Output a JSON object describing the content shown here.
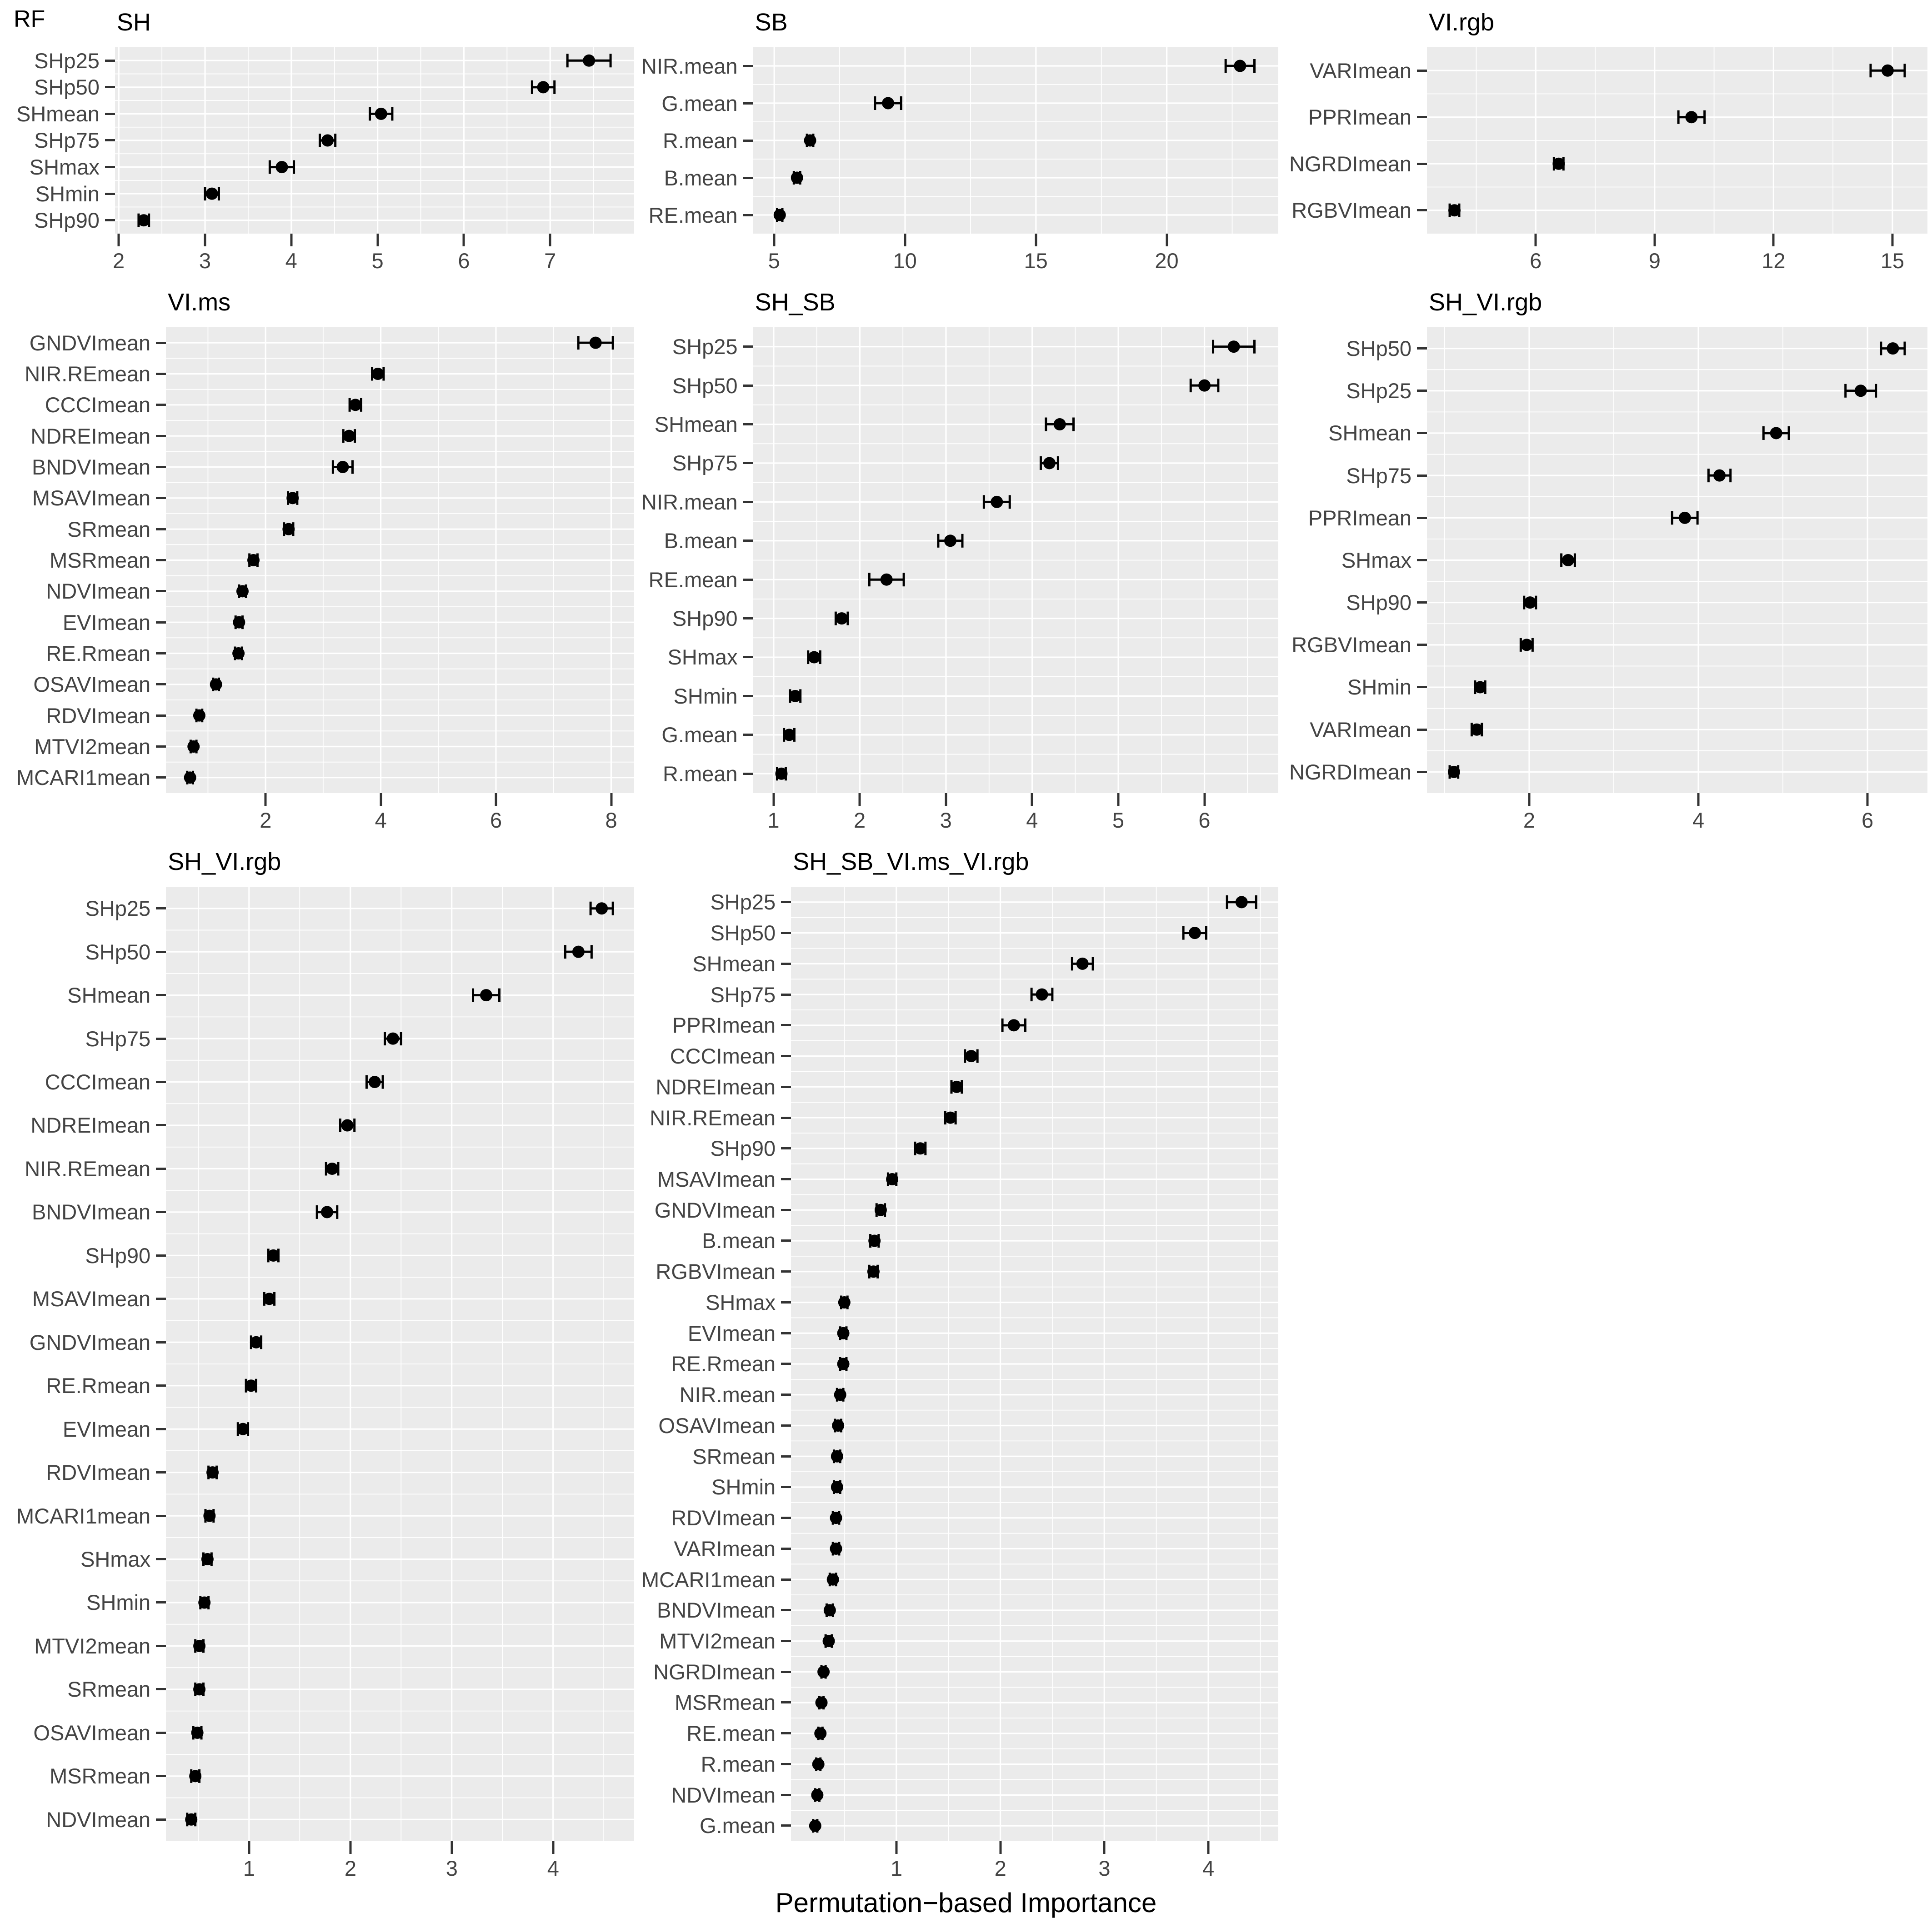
{
  "figure": {
    "model_label": "RF",
    "x_axis_label": "Permutation−based Importance",
    "colors": {
      "panel_background": "#EBEBEB",
      "gridline": "#FFFFFF",
      "point": "#000000",
      "axis_text": "#444444",
      "tick_mark": "#333333",
      "title_text": "#000000"
    },
    "layout": {
      "plot_row_heights": [
        410,
        1025,
        2100
      ],
      "grid_on": true,
      "legend": "none"
    }
  },
  "chart_data": [
    {
      "type": "scatter",
      "title": "SH",
      "row": 1,
      "col": 1,
      "categories": [
        "SHp25",
        "SHp50",
        "SHmean",
        "SHp75",
        "SHmax",
        "SHmin",
        "SHp90"
      ],
      "values": [
        7.45,
        6.92,
        5.04,
        4.42,
        3.89,
        3.08,
        2.29
      ],
      "errors": [
        0.25,
        0.13,
        0.13,
        0.09,
        0.14,
        0.08,
        0.06
      ],
      "xticks": [
        2,
        3,
        4,
        5,
        6,
        7
      ],
      "xlabel": "",
      "ylabel": ""
    },
    {
      "type": "scatter",
      "title": "SB",
      "row": 1,
      "col": 2,
      "categories": [
        "NIR.mean",
        "G.mean",
        "R.mean",
        "B.mean",
        "RE.mean"
      ],
      "values": [
        22.8,
        9.35,
        6.37,
        5.87,
        5.21
      ],
      "errors": [
        0.55,
        0.5,
        0.12,
        0.12,
        0.1
      ],
      "xticks": [
        5,
        10,
        15,
        20
      ],
      "xlabel": "",
      "ylabel": ""
    },
    {
      "type": "scatter",
      "title": "VI.rgb",
      "row": 1,
      "col": 3,
      "categories": [
        "VARImean",
        "PPRImean",
        "NGRDImean",
        "RGBVImean"
      ],
      "values": [
        14.88,
        9.93,
        6.58,
        3.95
      ],
      "errors": [
        0.43,
        0.33,
        0.12,
        0.12
      ],
      "xticks": [
        6,
        9,
        12,
        15
      ],
      "xlabel": "",
      "ylabel": ""
    },
    {
      "type": "scatter",
      "title": "VI.ms",
      "row": 2,
      "col": 1,
      "categories": [
        "GNDVImean",
        "NIR.REmean",
        "CCCImean",
        "NDREImean",
        "BNDVImean",
        "MSAVImean",
        "SRmean",
        "MSRmean",
        "NDVImean",
        "EVImean",
        "RE.Rmean",
        "OSAVImean",
        "RDVImean",
        "MTVI2mean",
        "MCARI1mean"
      ],
      "values": [
        7.73,
        3.95,
        3.56,
        3.45,
        3.34,
        2.47,
        2.4,
        1.79,
        1.6,
        1.54,
        1.53,
        1.14,
        0.85,
        0.75,
        0.69
      ],
      "errors": [
        0.3,
        0.1,
        0.1,
        0.1,
        0.17,
        0.08,
        0.08,
        0.07,
        0.06,
        0.06,
        0.06,
        0.05,
        0.05,
        0.05,
        0.05
      ],
      "xticks": [
        2,
        4,
        6,
        8
      ],
      "xlabel": "",
      "ylabel": ""
    },
    {
      "type": "scatter",
      "title": "SH_SB",
      "row": 2,
      "col": 2,
      "categories": [
        "SHp25",
        "SHp50",
        "SHmean",
        "SHp75",
        "NIR.mean",
        "B.mean",
        "RE.mean",
        "SHp90",
        "SHmax",
        "SHmin",
        "G.mean",
        "R.mean"
      ],
      "values": [
        6.34,
        6.0,
        4.32,
        4.2,
        3.59,
        3.05,
        2.31,
        1.79,
        1.47,
        1.25,
        1.18,
        1.09
      ],
      "errors": [
        0.24,
        0.16,
        0.16,
        0.1,
        0.15,
        0.14,
        0.2,
        0.07,
        0.07,
        0.06,
        0.06,
        0.05
      ],
      "xticks": [
        1,
        2,
        3,
        4,
        5,
        6
      ],
      "xlabel": "",
      "ylabel": ""
    },
    {
      "type": "scatter",
      "title": "SH_VI.rgb",
      "row": 2,
      "col": 3,
      "categories": [
        "SHp50",
        "SHp25",
        "SHmean",
        "SHp75",
        "PPRImean",
        "SHmax",
        "SHp90",
        "RGBVImean",
        "SHmin",
        "VARImean",
        "NGRDImean"
      ],
      "values": [
        6.3,
        5.92,
        4.92,
        4.25,
        3.84,
        2.46,
        2.01,
        1.97,
        1.42,
        1.38,
        1.11
      ],
      "errors": [
        0.14,
        0.18,
        0.15,
        0.13,
        0.15,
        0.08,
        0.07,
        0.07,
        0.06,
        0.06,
        0.05
      ],
      "xticks": [
        2,
        4,
        6
      ],
      "xlabel": "",
      "ylabel": ""
    },
    {
      "type": "scatter",
      "title": "SH_VI.rgb",
      "row": 3,
      "col": 1,
      "categories": [
        "SHp25",
        "SHp50",
        "SHmean",
        "SHp75",
        "CCCImean",
        "NDREImean",
        "NIR.REmean",
        "BNDVImean",
        "SHp90",
        "MSAVImean",
        "GNDVImean",
        "RE.Rmean",
        "EVImean",
        "RDVImean",
        "MCARI1mean",
        "SHmax",
        "SHmin",
        "MTVI2mean",
        "SRmean",
        "OSAVImean",
        "MSRmean",
        "NDVImean"
      ],
      "values": [
        4.48,
        4.25,
        3.34,
        2.42,
        2.24,
        1.97,
        1.82,
        1.77,
        1.24,
        1.2,
        1.07,
        1.02,
        0.94,
        0.64,
        0.61,
        0.59,
        0.56,
        0.51,
        0.51,
        0.49,
        0.47,
        0.43
      ],
      "errors": [
        0.11,
        0.13,
        0.13,
        0.08,
        0.08,
        0.07,
        0.06,
        0.1,
        0.05,
        0.05,
        0.05,
        0.05,
        0.05,
        0.04,
        0.04,
        0.04,
        0.04,
        0.04,
        0.04,
        0.04,
        0.04,
        0.04
      ],
      "xticks": [
        1,
        2,
        3,
        4
      ],
      "xlabel": "",
      "ylabel": ""
    },
    {
      "type": "scatter",
      "title": "SH_SB_VI.ms_VI.rgb",
      "row": 3,
      "col": 2,
      "categories": [
        "SHp25",
        "SHp50",
        "SHmean",
        "SHp75",
        "PPRImean",
        "CCCImean",
        "NDREImean",
        "NIR.REmean",
        "SHp90",
        "MSAVImean",
        "GNDVImean",
        "B.mean",
        "RGBVImean",
        "SHmax",
        "EVImean",
        "RE.Rmean",
        "NIR.mean",
        "OSAVImean",
        "SRmean",
        "SHmin",
        "RDVImean",
        "VARImean",
        "MCARI1mean",
        "BNDVImean",
        "MTVI2mean",
        "NGRDImean",
        "MSRmean",
        "RE.mean",
        "R.mean",
        "NDVImean",
        "G.mean"
      ],
      "values": [
        4.32,
        3.87,
        2.79,
        2.4,
        2.13,
        1.72,
        1.58,
        1.52,
        1.23,
        0.96,
        0.85,
        0.79,
        0.78,
        0.5,
        0.49,
        0.49,
        0.46,
        0.44,
        0.43,
        0.43,
        0.42,
        0.42,
        0.39,
        0.36,
        0.35,
        0.3,
        0.28,
        0.27,
        0.25,
        0.24,
        0.22
      ],
      "errors": [
        0.14,
        0.11,
        0.1,
        0.1,
        0.11,
        0.06,
        0.05,
        0.05,
        0.05,
        0.04,
        0.04,
        0.04,
        0.04,
        0.03,
        0.03,
        0.03,
        0.03,
        0.03,
        0.03,
        0.03,
        0.03,
        0.03,
        0.03,
        0.03,
        0.03,
        0.02,
        0.02,
        0.02,
        0.02,
        0.02,
        0.02
      ],
      "xticks": [
        1,
        2,
        3,
        4
      ],
      "xlabel": "",
      "ylabel": ""
    }
  ]
}
